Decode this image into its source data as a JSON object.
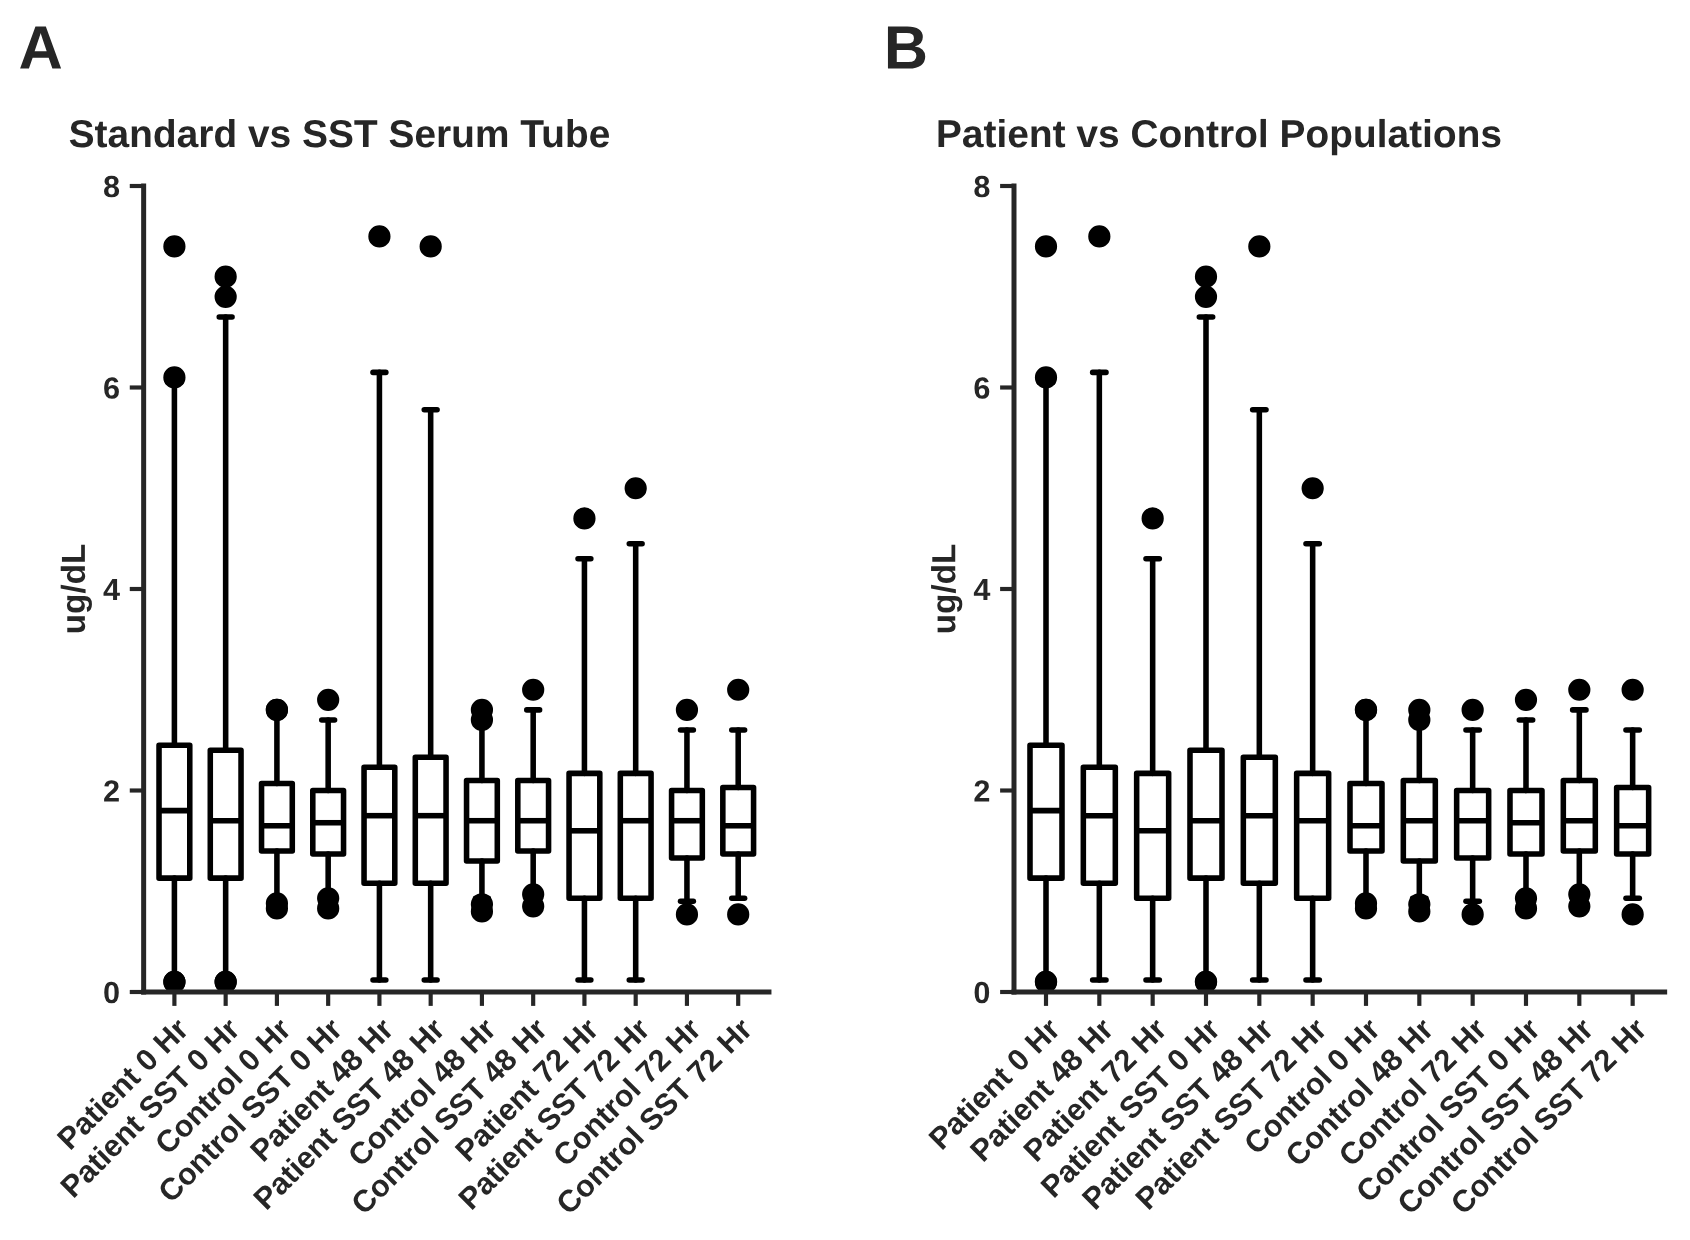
{
  "chart_data": [
    {
      "type": "box",
      "title": "Standard vs SST Serum Tube",
      "ylabel": "ug/dL",
      "annotations": [
        "A"
      ],
      "ylim": [
        0,
        8
      ],
      "yticks": [
        0,
        2,
        4,
        6,
        8
      ],
      "grid": false,
      "legend": false,
      "categories": [
        "Patient 0 Hr",
        "Patient SST 0 Hr",
        "Control 0 Hr",
        "Control SST 0 Hr",
        "Patient 48 Hr",
        "Patient SST 48 Hr",
        "Control 48 Hr",
        "Control SST 48 Hr",
        "Patient 72 Hr",
        "Patient SST 72 Hr",
        "Control 72 Hr",
        "Control SST 72 Hr"
      ],
      "boxes": [
        {
          "low": 0.13,
          "q1": 1.13,
          "median": 1.8,
          "q3": 2.45,
          "high": 6.05,
          "outliers": [
            7.4,
            6.1,
            0.1,
            0.1
          ]
        },
        {
          "low": 0.13,
          "q1": 1.13,
          "median": 1.7,
          "q3": 2.4,
          "high": 6.7,
          "outliers": [
            7.1,
            6.9,
            0.1,
            0.1
          ]
        },
        {
          "low": 0.9,
          "q1": 1.4,
          "median": 1.65,
          "q3": 2.07,
          "high": 2.75,
          "outliers": [
            2.8,
            2.8,
            0.83,
            0.88
          ]
        },
        {
          "low": 0.97,
          "q1": 1.37,
          "median": 1.68,
          "q3": 2.0,
          "high": 2.7,
          "outliers": [
            2.9,
            0.83,
            0.93
          ]
        },
        {
          "low": 0.12,
          "q1": 1.08,
          "median": 1.75,
          "q3": 2.23,
          "high": 6.15,
          "outliers": [
            7.5
          ]
        },
        {
          "low": 0.12,
          "q1": 1.08,
          "median": 1.75,
          "q3": 2.33,
          "high": 5.78,
          "outliers": [
            7.4
          ]
        },
        {
          "low": 0.93,
          "q1": 1.3,
          "median": 1.7,
          "q3": 2.1,
          "high": 2.7,
          "outliers": [
            2.8,
            2.7,
            0.8,
            0.87
          ]
        },
        {
          "low": 1.0,
          "q1": 1.4,
          "median": 1.7,
          "q3": 2.1,
          "high": 2.8,
          "outliers": [
            3.0,
            0.85,
            0.97
          ]
        },
        {
          "low": 0.12,
          "q1": 0.93,
          "median": 1.6,
          "q3": 2.17,
          "high": 4.3,
          "outliers": [
            4.7
          ]
        },
        {
          "low": 0.12,
          "q1": 0.93,
          "median": 1.7,
          "q3": 2.17,
          "high": 4.45,
          "outliers": [
            5.0
          ]
        },
        {
          "low": 0.9,
          "q1": 1.33,
          "median": 1.7,
          "q3": 2.0,
          "high": 2.6,
          "outliers": [
            2.8,
            0.77
          ]
        },
        {
          "low": 0.93,
          "q1": 1.37,
          "median": 1.65,
          "q3": 2.03,
          "high": 2.6,
          "outliers": [
            3.0,
            0.77
          ]
        }
      ]
    },
    {
      "type": "box",
      "title": "Patient vs Control Populations",
      "ylabel": "ug/dL",
      "annotations": [
        "B"
      ],
      "ylim": [
        0,
        8
      ],
      "yticks": [
        0,
        2,
        4,
        6,
        8
      ],
      "grid": false,
      "legend": false,
      "categories": [
        "Patient 0 Hr",
        "Patient 48 Hr",
        "Patient 72 Hr",
        "Patient SST 0 Hr",
        "Patient SST 48 Hr",
        "Patient SST 72 Hr",
        "Control 0 Hr",
        "Control 48 Hr",
        "Control 72 Hr",
        "Control SST 0 Hr",
        "Control SST 48 Hr",
        "Control SST 72 Hr"
      ],
      "boxes": [
        {
          "low": 0.13,
          "q1": 1.13,
          "median": 1.8,
          "q3": 2.45,
          "high": 6.05,
          "outliers": [
            7.4,
            6.1,
            0.1,
            0.1
          ]
        },
        {
          "low": 0.12,
          "q1": 1.08,
          "median": 1.75,
          "q3": 2.23,
          "high": 6.15,
          "outliers": [
            7.5
          ]
        },
        {
          "low": 0.12,
          "q1": 0.93,
          "median": 1.6,
          "q3": 2.17,
          "high": 4.3,
          "outliers": [
            4.7
          ]
        },
        {
          "low": 0.13,
          "q1": 1.13,
          "median": 1.7,
          "q3": 2.4,
          "high": 6.7,
          "outliers": [
            7.1,
            6.9,
            0.1,
            0.1
          ]
        },
        {
          "low": 0.12,
          "q1": 1.08,
          "median": 1.75,
          "q3": 2.33,
          "high": 5.78,
          "outliers": [
            7.4
          ]
        },
        {
          "low": 0.12,
          "q1": 0.93,
          "median": 1.7,
          "q3": 2.17,
          "high": 4.45,
          "outliers": [
            5.0
          ]
        },
        {
          "low": 0.9,
          "q1": 1.4,
          "median": 1.65,
          "q3": 2.07,
          "high": 2.75,
          "outliers": [
            2.8,
            2.8,
            0.83,
            0.88
          ]
        },
        {
          "low": 0.93,
          "q1": 1.3,
          "median": 1.7,
          "q3": 2.1,
          "high": 2.7,
          "outliers": [
            2.8,
            2.7,
            0.8,
            0.87
          ]
        },
        {
          "low": 0.9,
          "q1": 1.33,
          "median": 1.7,
          "q3": 2.0,
          "high": 2.6,
          "outliers": [
            2.8,
            0.77
          ]
        },
        {
          "low": 0.97,
          "q1": 1.37,
          "median": 1.68,
          "q3": 2.0,
          "high": 2.7,
          "outliers": [
            2.9,
            0.83,
            0.93
          ]
        },
        {
          "low": 1.0,
          "q1": 1.4,
          "median": 1.7,
          "q3": 2.1,
          "high": 2.8,
          "outliers": [
            3.0,
            0.85,
            0.97
          ]
        },
        {
          "low": 0.93,
          "q1": 1.37,
          "median": 1.65,
          "q3": 2.03,
          "high": 2.6,
          "outliers": [
            3.0,
            0.77
          ]
        }
      ]
    }
  ]
}
